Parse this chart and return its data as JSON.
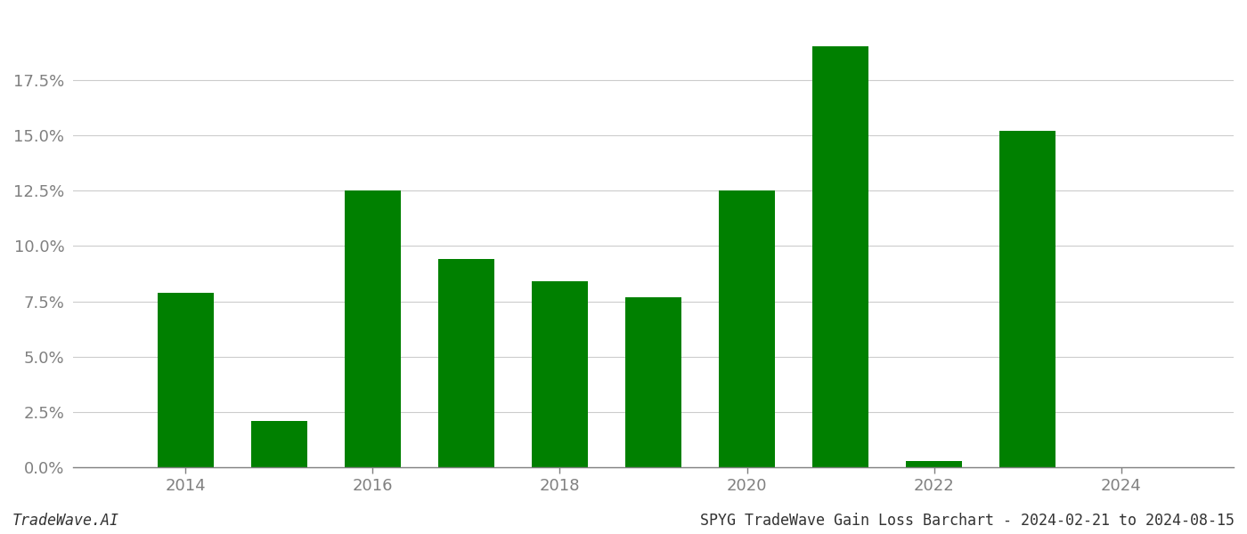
{
  "years": [
    2014,
    2015,
    2016,
    2017,
    2018,
    2019,
    2020,
    2021,
    2022,
    2023,
    2024
  ],
  "values": [
    0.079,
    0.021,
    0.125,
    0.094,
    0.084,
    0.077,
    0.125,
    0.19,
    0.003,
    0.152,
    0.0
  ],
  "bar_color": "#008000",
  "background_color": "#ffffff",
  "grid_color": "#cccccc",
  "tick_color": "#808080",
  "footer_left": "TradeWave.AI",
  "footer_right": "SPYG TradeWave Gain Loss Barchart - 2024-02-21 to 2024-08-15",
  "ylim": [
    0,
    0.205
  ],
  "yticks": [
    0.0,
    0.025,
    0.05,
    0.075,
    0.1,
    0.125,
    0.15,
    0.175
  ],
  "xlim": [
    2012.8,
    2025.2
  ],
  "xticks": [
    2014,
    2016,
    2018,
    2020,
    2022,
    2024
  ],
  "bar_width": 0.6,
  "figsize": [
    14.0,
    6.0
  ],
  "dpi": 100,
  "tick_fontsize": 13,
  "footer_fontsize": 12
}
